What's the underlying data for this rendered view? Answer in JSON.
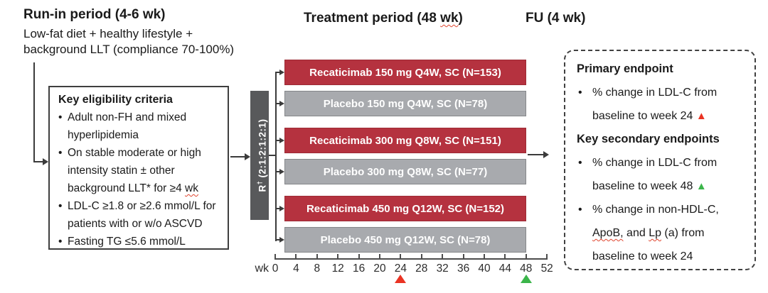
{
  "phases": {
    "runin_title": "Run-in period (4-6 wk)",
    "runin_desc_line1": "Low-fat diet + healthy lifestyle +",
    "runin_desc_line2": "background LLT (compliance 70-100%)",
    "treatment_title_pre": "Treatment period (48 ",
    "treatment_title_wavy": "wk",
    "treatment_title_post": ")",
    "fu_title": "FU (4 wk)"
  },
  "eligibility": {
    "title": "Key eligibility criteria",
    "items": [
      {
        "lines": [
          [
            {
              "t": "Adult non-FH and mixed"
            }
          ],
          [
            {
              "t": "hyperlipidemia"
            }
          ]
        ]
      },
      {
        "lines": [
          [
            {
              "t": "On stable moderate or high"
            }
          ],
          [
            {
              "t": "intensity statin ± other"
            }
          ],
          [
            {
              "t": "background LLT* for ≥4 "
            },
            {
              "t": "wk",
              "wavy": true
            }
          ]
        ]
      },
      {
        "lines": [
          [
            {
              "t": "LDL-C ≥1.8 or ≥2.6 mmol/L for"
            }
          ],
          [
            {
              "t": "patients with or w/o ASCVD"
            }
          ]
        ]
      },
      {
        "lines": [
          [
            {
              "t": "Fasting TG ≤5.6 mmol/L"
            }
          ]
        ]
      }
    ]
  },
  "randomization": {
    "letter": "R",
    "superscript": "†",
    "ratio": " (2:1:2:1:2:1)"
  },
  "arms": [
    {
      "label": "Recaticimab 150 mg Q4W, SC (N=153)",
      "type": "active"
    },
    {
      "label": "Placebo 150 mg Q4W, SC (N=78)",
      "type": "placebo"
    },
    {
      "label": "Recaticimab 300 mg Q8W, SC (N=151)",
      "type": "active"
    },
    {
      "label": "Placebo 300 mg Q8W, SC (N=77)",
      "type": "placebo"
    },
    {
      "label": "Recaticimab 450 mg Q12W, SC (N=152)",
      "type": "active"
    },
    {
      "label": "Placebo 450 mg Q12W, SC (N=78)",
      "type": "placebo"
    }
  ],
  "axis": {
    "unit_label": "wk",
    "ticks": [
      "0",
      "4",
      "8",
      "12",
      "16",
      "20",
      "24",
      "28",
      "32",
      "36",
      "40",
      "44",
      "48",
      "52"
    ],
    "markers": [
      {
        "week": 24,
        "color": "red"
      },
      {
        "week": 48,
        "color": "green"
      }
    ]
  },
  "endpoints": {
    "primary_title": "Primary endpoint",
    "primary_items": [
      {
        "lines": [
          [
            {
              "t": "% change in LDL-C from"
            }
          ],
          [
            {
              "t": "baseline to week 24 "
            },
            {
              "marker": "red"
            }
          ]
        ]
      }
    ],
    "secondary_title": "Key secondary endpoints",
    "secondary_items": [
      {
        "lines": [
          [
            {
              "t": "% change in LDL-C from"
            }
          ],
          [
            {
              "t": "baseline to week 48 "
            },
            {
              "marker": "green"
            }
          ]
        ]
      },
      {
        "lines": [
          [
            {
              "t": "% change in non-HDL-C,"
            }
          ],
          [
            {
              "t": "ApoB,",
              "wavy": true
            },
            {
              "t": " and "
            },
            {
              "t": "Lp",
              "wavy": true
            },
            {
              "t": " (a) from"
            }
          ],
          [
            {
              "t": "baseline to week 24"
            }
          ]
        ]
      }
    ]
  },
  "colors": {
    "active_arm": "#b5323f",
    "placebo_arm": "#a8aaae",
    "randomization_box": "#58595b",
    "marker_red": "#ea3323",
    "marker_green": "#3bb54a",
    "squiggle": "#e0442e"
  }
}
